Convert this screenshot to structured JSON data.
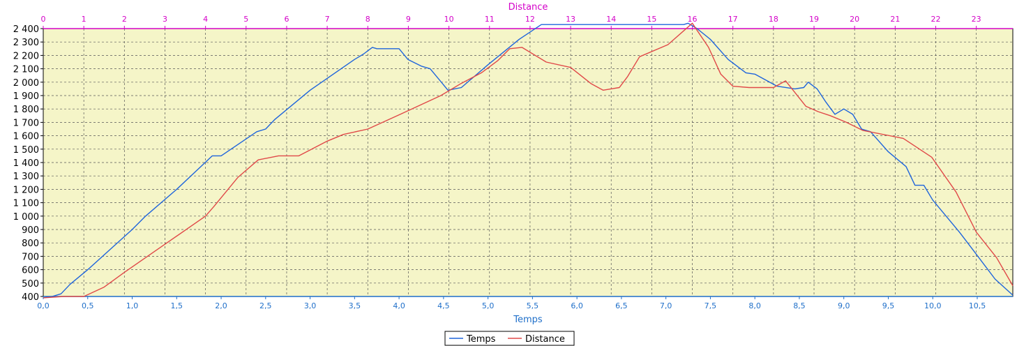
{
  "chart_data": {
    "type": "line",
    "xlabel": "Temps",
    "x2label": "Distance",
    "ylabel": "",
    "xlim": [
      0,
      10.9
    ],
    "x2lim": [
      0,
      23.9
    ],
    "ylim": [
      400,
      2400
    ],
    "x_ticks": [
      "0,0",
      "0,5",
      "1,0",
      "1,5",
      "2,0",
      "2,5",
      "3,0",
      "3,5",
      "4,0",
      "4,5",
      "5,0",
      "5,5",
      "6,0",
      "6,5",
      "7,0",
      "7,5",
      "8,0",
      "8,5",
      "9,0",
      "9,5",
      "10,0",
      "10,5"
    ],
    "x2_ticks": [
      "0",
      "1",
      "2",
      "3",
      "4",
      "5",
      "6",
      "7",
      "8",
      "9",
      "10",
      "11",
      "12",
      "13",
      "14",
      "15",
      "16",
      "17",
      "18",
      "19",
      "20",
      "21",
      "22",
      "23"
    ],
    "y_ticks": [
      "400",
      "500",
      "600",
      "700",
      "800",
      "900",
      "1 000",
      "1 100",
      "1 200",
      "1 300",
      "1 400",
      "1 500",
      "1 600",
      "1 700",
      "1 800",
      "1 900",
      "2 000",
      "2 100",
      "2 200",
      "2 300",
      "2 400"
    ],
    "grid": true,
    "legend_position": "bottom-center",
    "plot_background": "#f5f5c8",
    "series": [
      {
        "name": "Temps",
        "color": "#1e64dc",
        "axis": "bottom",
        "x": [
          0.0,
          0.1,
          0.2,
          0.3,
          0.5,
          1.0,
          1.15,
          1.5,
          1.9,
          2.0,
          2.4,
          2.5,
          2.6,
          3.0,
          3.5,
          3.6,
          3.7,
          3.75,
          4.0,
          4.1,
          4.25,
          4.35,
          4.55,
          4.7,
          5.0,
          5.35,
          5.6,
          6.5,
          7.2,
          7.25,
          7.35,
          7.5,
          7.7,
          7.9,
          8.0,
          8.25,
          8.45,
          8.55,
          8.6,
          8.7,
          8.8,
          8.9,
          9.0,
          9.1,
          9.2,
          9.3,
          9.5,
          9.7,
          9.8,
          9.9,
          10.0,
          10.3,
          10.45,
          10.7,
          10.9
        ],
        "y": [
          390,
          400,
          420,
          490,
          600,
          900,
          1000,
          1200,
          1450,
          1450,
          1630,
          1650,
          1720,
          1940,
          2170,
          2210,
          2260,
          2250,
          2250,
          2170,
          2120,
          2100,
          1940,
          1960,
          2130,
          2320,
          2430,
          2430,
          2430,
          2440,
          2400,
          2320,
          2170,
          2070,
          2060,
          1970,
          1950,
          1960,
          2000,
          1950,
          1850,
          1760,
          1800,
          1760,
          1650,
          1630,
          1480,
          1370,
          1230,
          1230,
          1120,
          880,
          750,
          530,
          410
        ]
      },
      {
        "name": "Distance",
        "color": "#e04848",
        "axis": "top",
        "x": [
          0.0,
          0.5,
          1.0,
          1.5,
          2.0,
          3.0,
          4.0,
          4.2,
          4.8,
          5.3,
          5.8,
          6.3,
          7.0,
          7.4,
          8.0,
          8.8,
          9.8,
          10.3,
          10.8,
          11.2,
          11.5,
          11.8,
          12.4,
          13.0,
          13.5,
          13.8,
          14.2,
          14.4,
          14.7,
          15.4,
          16.0,
          16.4,
          16.7,
          17.0,
          17.4,
          18.0,
          18.3,
          18.8,
          19.1,
          19.4,
          19.8,
          20.2,
          21.2,
          21.9,
          22.5,
          23.0,
          23.5,
          23.9
        ],
        "y": [
          390,
          400,
          400,
          470,
          580,
          790,
          1000,
          1070,
          1290,
          1420,
          1450,
          1450,
          1560,
          1610,
          1650,
          1760,
          1900,
          1990,
          2070,
          2160,
          2250,
          2260,
          2150,
          2110,
          1990,
          1940,
          1960,
          2040,
          2190,
          2280,
          2440,
          2260,
          2060,
          1970,
          1960,
          1960,
          2010,
          1820,
          1780,
          1750,
          1700,
          1640,
          1580,
          1440,
          1180,
          880,
          690,
          480
        ]
      }
    ],
    "legend": {
      "items": [
        {
          "label": "Temps",
          "color": "#1e64dc"
        },
        {
          "label": "Distance",
          "color": "#e04848"
        }
      ]
    }
  }
}
